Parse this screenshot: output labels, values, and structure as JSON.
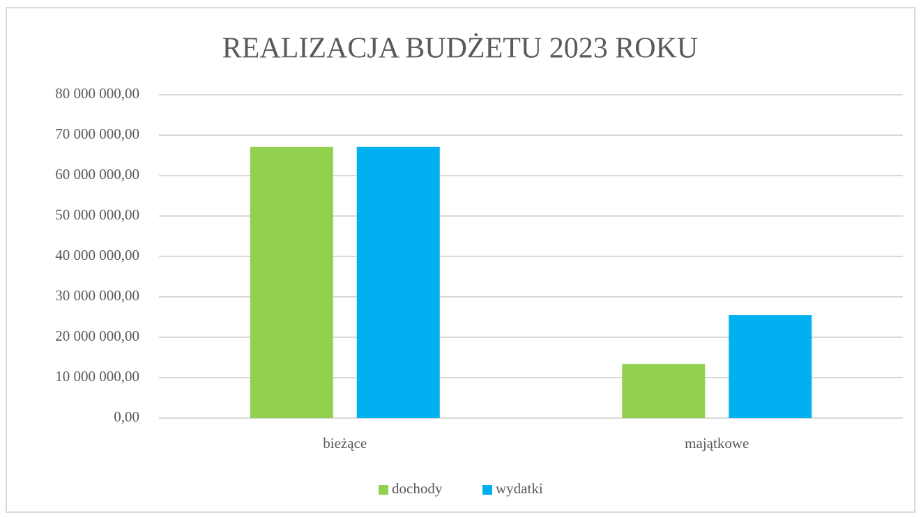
{
  "chart_data": {
    "type": "bar",
    "title": "REALIZACJA BUDŻETU 2023 ROKU",
    "categories": [
      "bieżące",
      "majątkowe"
    ],
    "series": [
      {
        "name": "dochody",
        "color": "#92d050",
        "values": [
          67100000,
          13400000
        ]
      },
      {
        "name": "wydatki",
        "color": "#00b0f0",
        "values": [
          67100000,
          25500000
        ]
      }
    ],
    "ylim": [
      0,
      80000000
    ],
    "yticks": [
      {
        "value": 0,
        "label": "0,00"
      },
      {
        "value": 10000000,
        "label": "10 000 000,00"
      },
      {
        "value": 20000000,
        "label": "20 000 000,00"
      },
      {
        "value": 30000000,
        "label": "30 000 000,00"
      },
      {
        "value": 40000000,
        "label": "40 000 000,00"
      },
      {
        "value": 50000000,
        "label": "50 000 000,00"
      },
      {
        "value": 60000000,
        "label": "60 000 000,00"
      },
      {
        "value": 70000000,
        "label": "70 000 000,00"
      },
      {
        "value": 80000000,
        "label": "80 000 000,00"
      }
    ],
    "grid": true,
    "legend": "bottom"
  }
}
